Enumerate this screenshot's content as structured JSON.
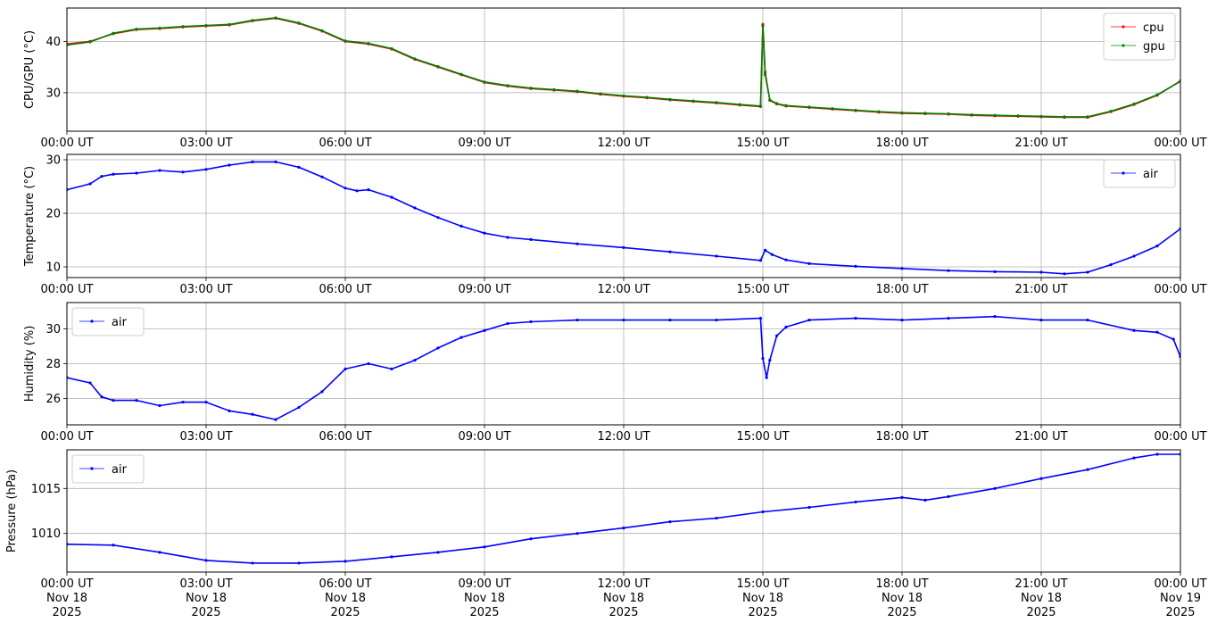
{
  "chart_data": [
    {
      "type": "line",
      "ylabel": "CPU/GPU (°C)",
      "xlim": [
        "00:00",
        "24:00"
      ],
      "ylim": [
        22.5,
        46.5
      ],
      "yticks": [
        30,
        40
      ],
      "xticks": [
        "00:00 UT",
        "03:00 UT",
        "06:00 UT",
        "09:00 UT",
        "12:00 UT",
        "15:00 UT",
        "18:00 UT",
        "21:00 UT",
        "00:00 UT"
      ],
      "grid": true,
      "legend": "top-right",
      "series": [
        {
          "name": "cpu",
          "color": "#ff0000",
          "x_hours": [
            0,
            0.5,
            1,
            1.5,
            2,
            2.5,
            3,
            3.5,
            4,
            4.5,
            5,
            5.5,
            6,
            6.5,
            7,
            7.5,
            8,
            8.5,
            9,
            9.5,
            10,
            10.5,
            11,
            11.5,
            12,
            12.5,
            13,
            13.5,
            14,
            14.5,
            14.95,
            15.0,
            15.05,
            15.15,
            15.3,
            15.5,
            16,
            16.5,
            17,
            17.5,
            18,
            18.5,
            19,
            19.5,
            20,
            20.5,
            21,
            21.5,
            22,
            22.5,
            23,
            23.5,
            24
          ],
          "values": [
            39.5,
            40.0,
            41.5,
            42.3,
            42.5,
            42.8,
            43.0,
            43.2,
            44.0,
            44.5,
            43.5,
            42.0,
            40.0,
            39.5,
            38.5,
            36.5,
            35.0,
            33.5,
            32.0,
            31.3,
            30.8,
            30.5,
            30.2,
            29.7,
            29.3,
            29.0,
            28.6,
            28.3,
            28.0,
            27.6,
            27.3,
            43.3,
            34.0,
            28.5,
            27.8,
            27.4,
            27.1,
            26.8,
            26.5,
            26.2,
            26.0,
            25.9,
            25.8,
            25.6,
            25.5,
            25.4,
            25.3,
            25.2,
            25.2,
            26.3,
            27.7,
            29.5,
            32.3
          ]
        },
        {
          "name": "gpu",
          "color": "#008000",
          "x_hours": [
            0,
            0.5,
            1,
            1.5,
            2,
            2.5,
            3,
            3.5,
            4,
            4.5,
            5,
            5.5,
            6,
            6.5,
            7,
            7.5,
            8,
            8.5,
            9,
            9.5,
            10,
            10.5,
            11,
            11.5,
            12,
            12.5,
            13,
            13.5,
            14,
            14.5,
            14.95,
            15.0,
            15.05,
            15.15,
            15.3,
            15.5,
            16,
            16.5,
            17,
            17.5,
            18,
            18.5,
            19,
            19.5,
            20,
            20.5,
            21,
            21.5,
            22,
            22.5,
            23,
            23.5,
            24
          ],
          "values": [
            39.3,
            39.9,
            41.6,
            42.4,
            42.6,
            42.9,
            43.1,
            43.3,
            44.1,
            44.6,
            43.6,
            42.1,
            40.1,
            39.6,
            38.6,
            36.6,
            35.1,
            33.6,
            32.1,
            31.4,
            30.9,
            30.6,
            30.3,
            29.8,
            29.4,
            29.1,
            28.7,
            28.4,
            28.1,
            27.7,
            27.4,
            43.0,
            33.5,
            28.6,
            27.9,
            27.5,
            27.2,
            26.9,
            26.6,
            26.3,
            26.1,
            26.0,
            25.9,
            25.7,
            25.6,
            25.5,
            25.4,
            25.3,
            25.3,
            26.4,
            27.8,
            29.6,
            32.2
          ]
        }
      ]
    },
    {
      "type": "line",
      "ylabel": "Temperature (°C)",
      "xlim": [
        "00:00",
        "24:00"
      ],
      "ylim": [
        8,
        31
      ],
      "yticks": [
        10,
        20,
        30
      ],
      "xticks": [
        "00:00 UT",
        "03:00 UT",
        "06:00 UT",
        "09:00 UT",
        "12:00 UT",
        "15:00 UT",
        "18:00 UT",
        "21:00 UT",
        "00:00 UT"
      ],
      "grid": true,
      "legend": "top-right",
      "series": [
        {
          "name": "air",
          "color": "#0000ff",
          "x_hours": [
            0,
            0.5,
            0.75,
            1,
            1.5,
            2,
            2.5,
            3,
            3.5,
            4,
            4.5,
            5,
            5.5,
            6,
            6.25,
            6.5,
            7,
            7.5,
            8,
            8.5,
            9,
            9.5,
            10,
            11,
            12,
            13,
            14,
            14.95,
            15.05,
            15.2,
            15.5,
            16,
            17,
            18,
            19,
            20,
            21,
            21.5,
            22,
            22.5,
            23,
            23.5,
            24
          ],
          "values": [
            24.4,
            25.5,
            26.9,
            27.3,
            27.5,
            28.0,
            27.7,
            28.2,
            29.0,
            29.6,
            29.6,
            28.6,
            26.8,
            24.7,
            24.2,
            24.4,
            23.0,
            21.0,
            19.2,
            17.6,
            16.3,
            15.5,
            15.1,
            14.3,
            13.6,
            12.8,
            12.0,
            11.2,
            13.1,
            12.3,
            11.3,
            10.6,
            10.1,
            9.7,
            9.3,
            9.1,
            9.0,
            8.7,
            9.0,
            10.4,
            12.0,
            13.9,
            17.1
          ]
        }
      ]
    },
    {
      "type": "line",
      "ylabel": "Humidity (%)",
      "xlim": [
        "00:00",
        "24:00"
      ],
      "ylim": [
        24.5,
        31.5
      ],
      "yticks": [
        26,
        28,
        30
      ],
      "xticks": [
        "00:00 UT",
        "03:00 UT",
        "06:00 UT",
        "09:00 UT",
        "12:00 UT",
        "15:00 UT",
        "18:00 UT",
        "21:00 UT",
        "00:00 UT"
      ],
      "grid": true,
      "legend": "top-left",
      "series": [
        {
          "name": "air",
          "color": "#0000ff",
          "x_hours": [
            0,
            0.5,
            0.75,
            1,
            1.5,
            2,
            2.5,
            3,
            3.5,
            4,
            4.5,
            5,
            5.5,
            6,
            6.5,
            7,
            7.5,
            8,
            8.5,
            9,
            9.5,
            10,
            11,
            12,
            13,
            14,
            14.95,
            15.0,
            15.08,
            15.15,
            15.3,
            15.5,
            16,
            17,
            18,
            19,
            20,
            21,
            22,
            23,
            23.5,
            23.85,
            24
          ],
          "values": [
            27.2,
            26.9,
            26.1,
            25.9,
            25.9,
            25.6,
            25.8,
            25.8,
            25.3,
            25.1,
            24.8,
            25.5,
            26.4,
            27.7,
            28.0,
            27.7,
            28.2,
            28.9,
            29.5,
            29.9,
            30.3,
            30.4,
            30.5,
            30.5,
            30.5,
            30.5,
            30.6,
            28.3,
            27.2,
            28.2,
            29.6,
            30.1,
            30.5,
            30.6,
            30.5,
            30.6,
            30.7,
            30.5,
            30.5,
            29.9,
            29.8,
            29.4,
            28.4
          ]
        }
      ]
    },
    {
      "type": "line",
      "ylabel": "Pressure (hPa)",
      "xlim": [
        "00:00",
        "24:00"
      ],
      "ylim": [
        1005.7,
        1019.3
      ],
      "yticks": [
        1010,
        1015
      ],
      "xticks": [
        "00:00 UT\nNov 18\n2025",
        "03:00 UT\nNov 18\n2025",
        "06:00 UT\nNov 18\n2025",
        "09:00 UT\nNov 18\n2025",
        "12:00 UT\nNov 18\n2025",
        "15:00 UT\nNov 18\n2025",
        "18:00 UT\nNov 18\n2025",
        "21:00 UT\nNov 18\n2025",
        "00:00 UT\nNov 19\n2025"
      ],
      "grid": true,
      "legend": "top-left",
      "series": [
        {
          "name": "air",
          "color": "#0000ff",
          "x_hours": [
            0,
            1,
            2,
            3,
            4,
            5,
            6,
            7,
            8,
            9,
            10,
            11,
            12,
            13,
            14,
            15,
            16,
            17,
            18,
            18.5,
            19,
            20,
            21,
            22,
            23,
            23.5,
            24
          ],
          "values": [
            1008.8,
            1008.7,
            1007.9,
            1007.0,
            1006.7,
            1006.7,
            1006.9,
            1007.4,
            1007.9,
            1008.5,
            1009.4,
            1010.0,
            1010.6,
            1011.3,
            1011.7,
            1012.4,
            1012.9,
            1013.5,
            1014.0,
            1013.7,
            1014.1,
            1015.0,
            1016.1,
            1017.1,
            1018.4,
            1018.8,
            1018.8
          ]
        }
      ]
    }
  ]
}
